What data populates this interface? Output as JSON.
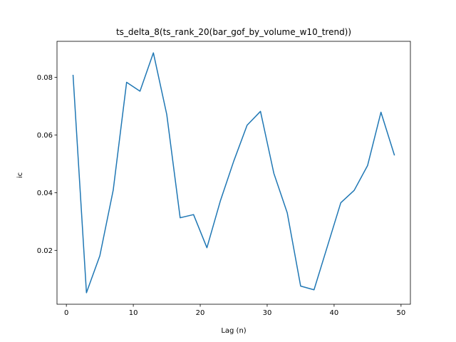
{
  "chart_data": {
    "type": "line",
    "title": "ts_delta_8(ts_rank_20(bar_gof_by_volume_w10_trend))",
    "xlabel": "Lag (n)",
    "ylabel": "ic",
    "xlim": [
      -1.4,
      51.4
    ],
    "ylim": [
      0.0013,
      0.0925
    ],
    "xticks": [
      0,
      10,
      20,
      30,
      40,
      50
    ],
    "xtick_labels": [
      "0",
      "10",
      "20",
      "30",
      "40",
      "50"
    ],
    "yticks": [
      0.02,
      0.04,
      0.06,
      0.08
    ],
    "ytick_labels": [
      "0.02",
      "0.04",
      "0.06",
      "0.08"
    ],
    "grid": false,
    "series": [
      {
        "color": "#1f77b4",
        "x": [
          1,
          3,
          5,
          7,
          9,
          11,
          13,
          15,
          17,
          19,
          21,
          23,
          25,
          27,
          29,
          31,
          33,
          35,
          37,
          39,
          41,
          43,
          45,
          47,
          49
        ],
        "y": [
          0.0807,
          0.0053,
          0.0181,
          0.0409,
          0.0783,
          0.0752,
          0.0885,
          0.0671,
          0.0313,
          0.0324,
          0.0209,
          0.0371,
          0.0509,
          0.0634,
          0.0682,
          0.0467,
          0.033,
          0.0076,
          0.0063,
          0.0214,
          0.0365,
          0.0408,
          0.0494,
          0.0679,
          0.0531
        ]
      }
    ]
  }
}
